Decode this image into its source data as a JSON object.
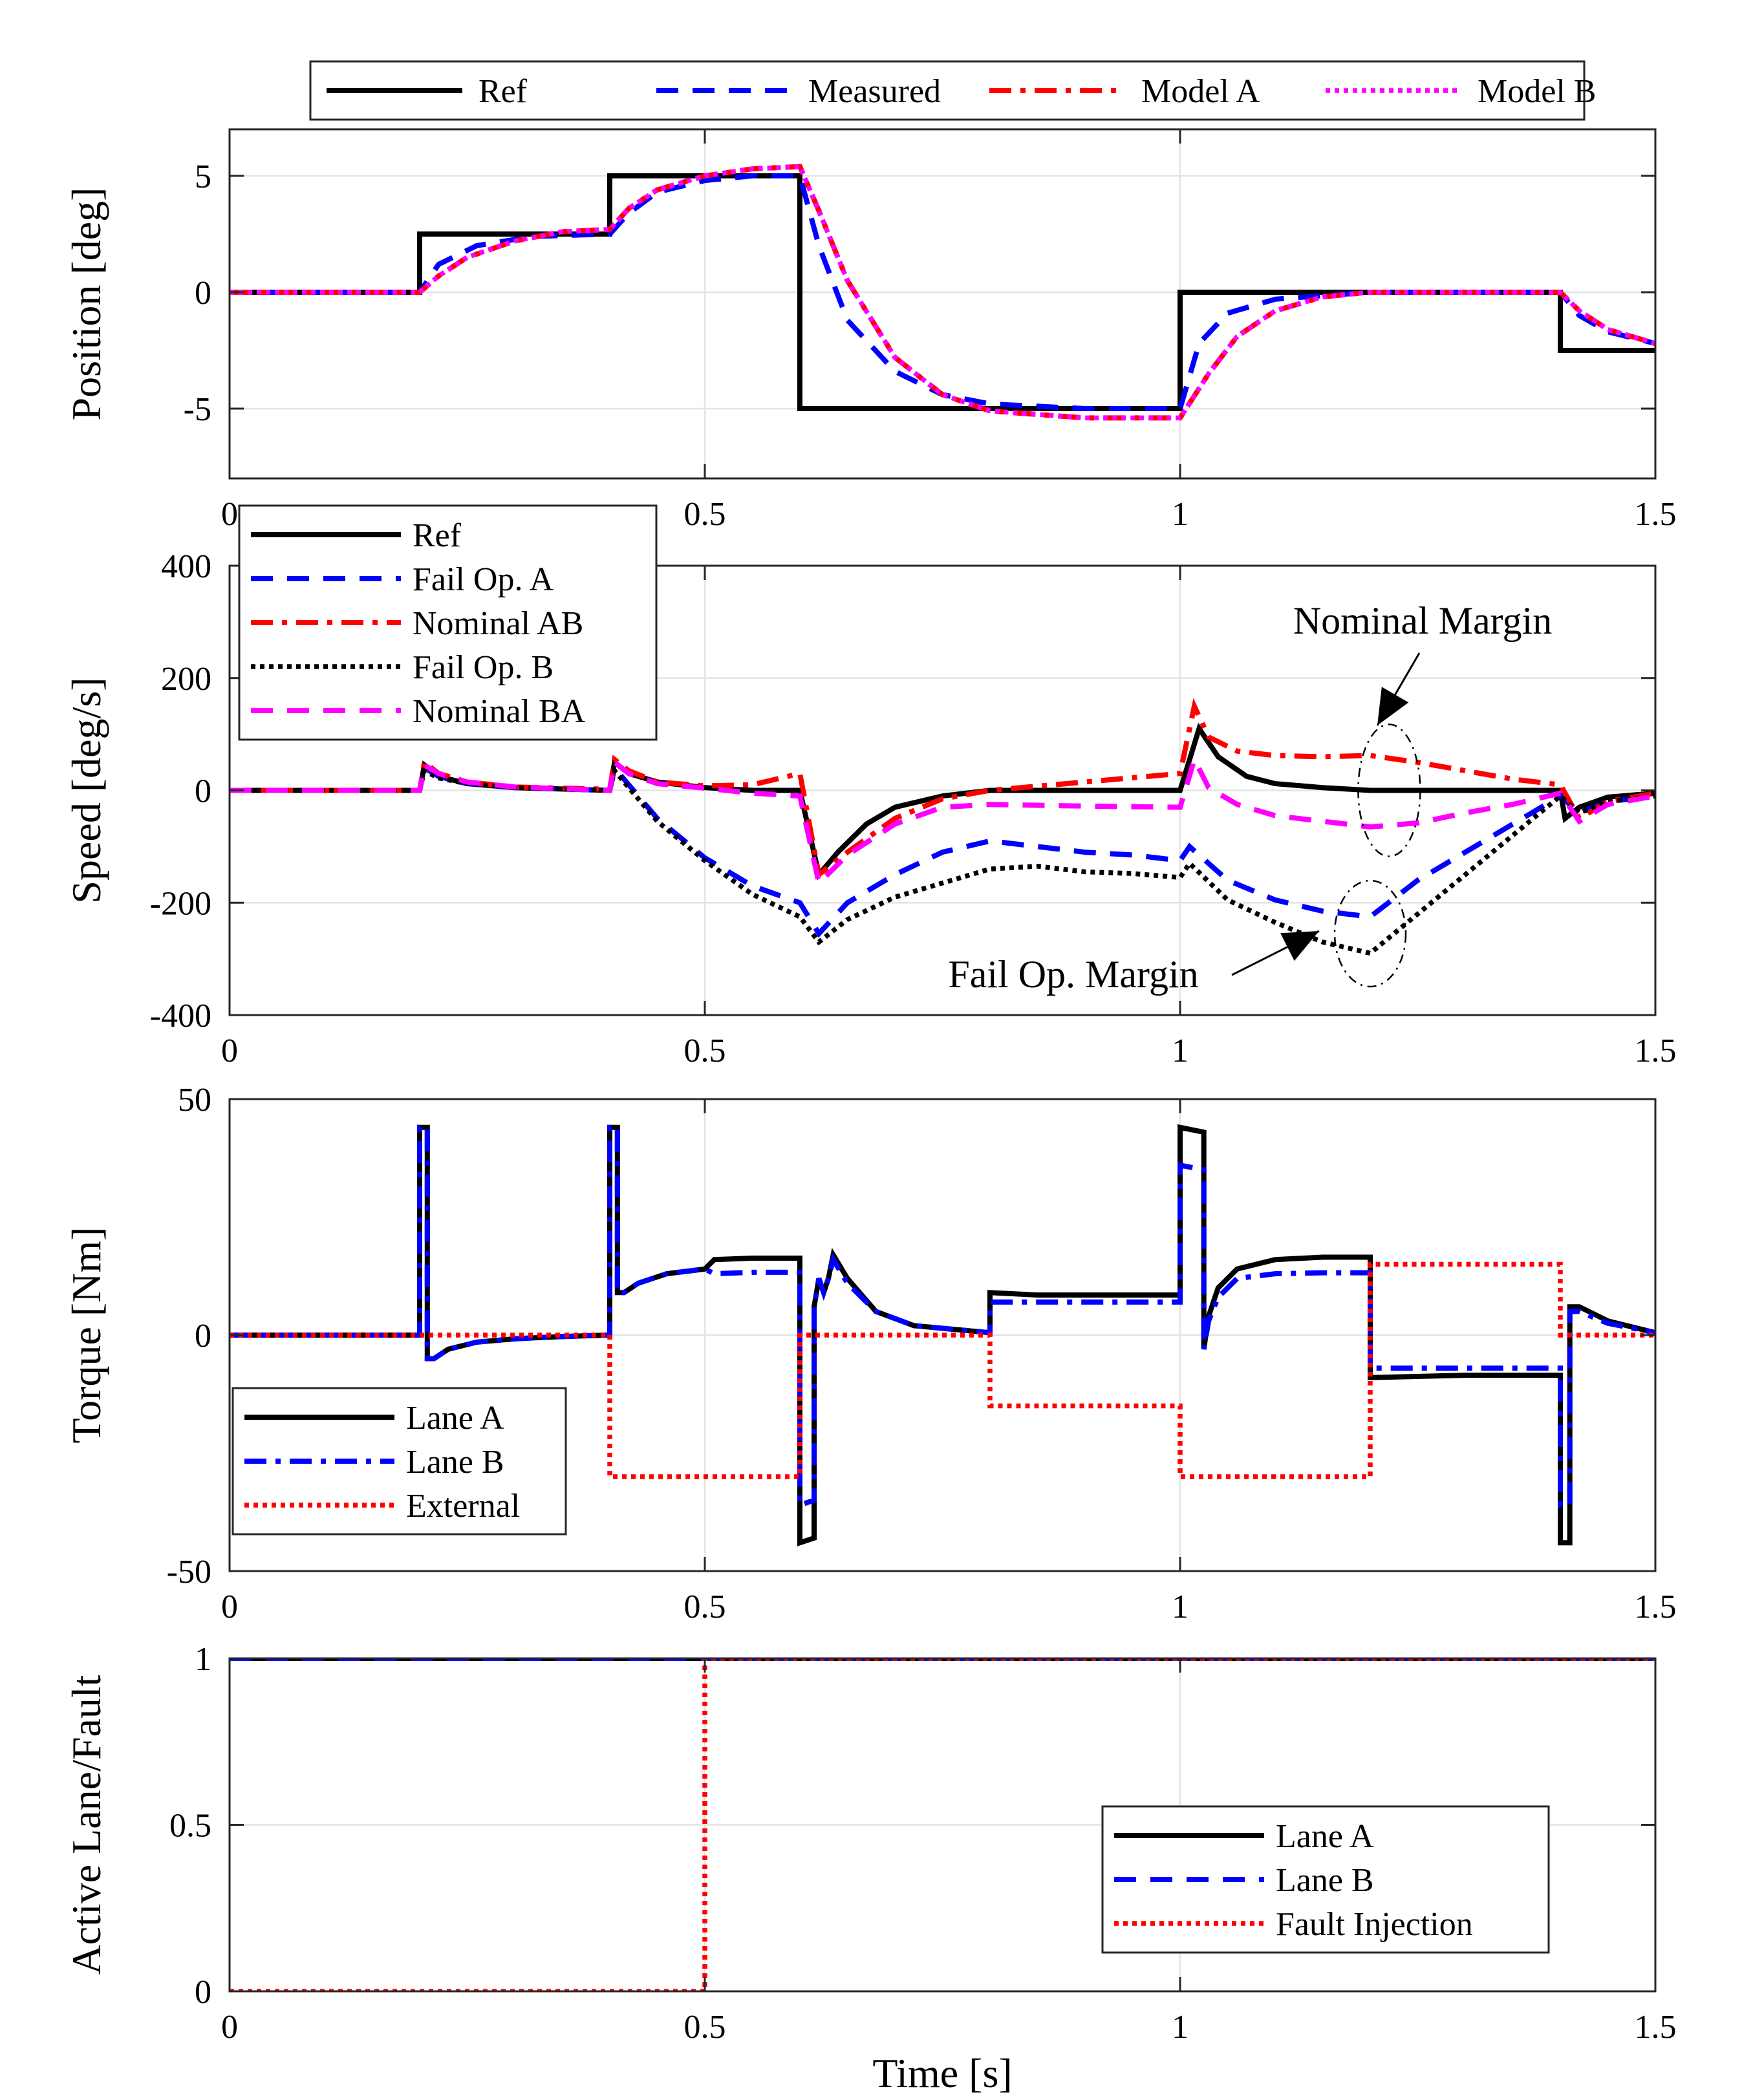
{
  "chart_data": [
    {
      "type": "line",
      "id": "position",
      "ylabel": "Position [deg]",
      "xlabel": "",
      "xlim": [
        0,
        1.5
      ],
      "ylim": [
        -8,
        7
      ],
      "xticks": [
        0,
        0.5,
        1,
        1.5
      ],
      "xtick_labels": [
        "0",
        "0.5",
        "1",
        "1.5"
      ],
      "yticks": [
        -5,
        0,
        5
      ],
      "ytick_labels": [
        "-5",
        "0",
        "5"
      ],
      "grid": true,
      "legend": {
        "placement": "top, horizontal, outside",
        "entries": [
          "Ref",
          "Measured",
          "Model A",
          "Model B"
        ]
      },
      "series": [
        {
          "name": "Ref",
          "color": "#000000",
          "style": "solid",
          "x": [
            0,
            0.2,
            0.2,
            0.4,
            0.4,
            0.6,
            0.6,
            1.0,
            1.0,
            1.4,
            1.4,
            1.5
          ],
          "y": [
            0,
            0,
            2.5,
            2.5,
            5,
            5,
            -5,
            -5,
            0,
            0,
            -2.5,
            -2.5
          ]
        },
        {
          "name": "Measured",
          "color": "#0000ff",
          "style": "dashed",
          "x": [
            0,
            0.2,
            0.22,
            0.26,
            0.32,
            0.4,
            0.42,
            0.45,
            0.5,
            0.55,
            0.6,
            0.62,
            0.65,
            0.7,
            0.75,
            0.8,
            0.9,
            1.0,
            1.02,
            1.05,
            1.1,
            1.2,
            1.3,
            1.4,
            1.42,
            1.45,
            1.5
          ],
          "y": [
            0,
            0,
            1.2,
            2.0,
            2.4,
            2.5,
            3.4,
            4.3,
            4.8,
            5.0,
            5.0,
            2.0,
            -1.2,
            -3.4,
            -4.4,
            -4.8,
            -5.0,
            -5.0,
            -2.2,
            -0.9,
            -0.3,
            0,
            0,
            0,
            -1.0,
            -1.7,
            -2.2
          ]
        },
        {
          "name": "Model A",
          "color": "#ff0000",
          "style": "dashdot",
          "x": [
            0,
            0.2,
            0.22,
            0.25,
            0.3,
            0.35,
            0.4,
            0.42,
            0.45,
            0.5,
            0.55,
            0.6,
            0.62,
            0.65,
            0.7,
            0.75,
            0.8,
            0.9,
            1.0,
            1.03,
            1.06,
            1.1,
            1.15,
            1.2,
            1.3,
            1.4,
            1.42,
            1.45,
            1.5
          ],
          "y": [
            0,
            0,
            0.7,
            1.5,
            2.2,
            2.6,
            2.7,
            3.6,
            4.4,
            5.0,
            5.3,
            5.4,
            3.5,
            0.5,
            -2.8,
            -4.4,
            -5.1,
            -5.4,
            -5.4,
            -3.5,
            -1.9,
            -0.8,
            -0.2,
            0,
            0,
            0,
            -0.8,
            -1.6,
            -2.2
          ]
        },
        {
          "name": "Model B",
          "color": "#ff00ff",
          "style": "dotted",
          "x": [
            0,
            0.2,
            0.22,
            0.25,
            0.3,
            0.35,
            0.4,
            0.42,
            0.45,
            0.5,
            0.55,
            0.6,
            0.62,
            0.65,
            0.7,
            0.75,
            0.8,
            0.9,
            1.0,
            1.03,
            1.06,
            1.1,
            1.15,
            1.2,
            1.3,
            1.4,
            1.42,
            1.45,
            1.5
          ],
          "y": [
            0,
            0,
            0.7,
            1.5,
            2.2,
            2.6,
            2.7,
            3.6,
            4.4,
            5.0,
            5.3,
            5.4,
            3.5,
            0.5,
            -2.8,
            -4.4,
            -5.1,
            -5.4,
            -5.4,
            -3.5,
            -1.9,
            -0.8,
            -0.2,
            0,
            0,
            0,
            -0.8,
            -1.6,
            -2.2
          ]
        }
      ]
    },
    {
      "type": "line",
      "id": "speed",
      "ylabel": "Speed [deg/s]",
      "xlabel": "",
      "xlim": [
        0,
        1.5
      ],
      "ylim": [
        -400,
        400
      ],
      "xticks": [
        0,
        0.5,
        1,
        1.5
      ],
      "xtick_labels": [
        "0",
        "0.5",
        "1",
        "1.5"
      ],
      "yticks": [
        -400,
        -200,
        0,
        200,
        400
      ],
      "ytick_labels": [
        "-400",
        "-200",
        "0",
        "200",
        "400"
      ],
      "grid": true,
      "legend": {
        "placement": "top-left",
        "entries": [
          "Ref",
          "Fail Op. A",
          "Nominal AB",
          "Fail Op. B",
          "Nominal BA"
        ]
      },
      "annotations": [
        {
          "text": "Nominal Margin",
          "x": 1.22,
          "y": 300
        },
        {
          "text": "Fail Op. Margin",
          "x": 0.88,
          "y": -330
        }
      ],
      "series": [
        {
          "name": "Ref",
          "color": "#000000",
          "style": "solid",
          "x": [
            0,
            0.2,
            0.205,
            0.22,
            0.25,
            0.3,
            0.4,
            0.405,
            0.42,
            0.45,
            0.5,
            0.55,
            0.6,
            0.62,
            0.64,
            0.67,
            0.7,
            0.75,
            0.8,
            0.9,
            1.0,
            1.02,
            1.04,
            1.07,
            1.1,
            1.15,
            1.2,
            1.3,
            1.4,
            1.405,
            1.42,
            1.45,
            1.5
          ],
          "y": [
            0,
            0,
            45,
            25,
            12,
            5,
            0,
            50,
            30,
            15,
            5,
            0,
            0,
            -150,
            -110,
            -60,
            -30,
            -10,
            0,
            0,
            0,
            110,
            60,
            25,
            12,
            5,
            0,
            0,
            0,
            -50,
            -30,
            -12,
            -5
          ]
        },
        {
          "name": "Fail Op. A",
          "color": "#0000ff",
          "style": "dashed",
          "x": [
            0,
            0.2,
            0.205,
            0.22,
            0.25,
            0.3,
            0.4,
            0.405,
            0.42,
            0.45,
            0.5,
            0.55,
            0.6,
            0.62,
            0.65,
            0.7,
            0.75,
            0.8,
            0.85,
            0.9,
            0.95,
            1.0,
            1.01,
            1.05,
            1.1,
            1.15,
            1.2,
            1.25,
            1.3,
            1.35,
            1.4,
            1.42,
            1.45,
            1.5
          ],
          "y": [
            0,
            0,
            40,
            25,
            12,
            5,
            0,
            40,
            10,
            -50,
            -120,
            -170,
            -200,
            -255,
            -200,
            -150,
            -110,
            -90,
            -100,
            -110,
            -115,
            -125,
            -100,
            -160,
            -195,
            -215,
            -225,
            -160,
            -110,
            -60,
            -10,
            -40,
            -20,
            -10
          ]
        },
        {
          "name": "Nominal AB",
          "color": "#ff0000",
          "style": "dashdot",
          "x": [
            0,
            0.2,
            0.205,
            0.22,
            0.25,
            0.3,
            0.4,
            0.405,
            0.42,
            0.45,
            0.5,
            0.55,
            0.6,
            0.62,
            0.65,
            0.7,
            0.75,
            0.8,
            0.9,
            1.0,
            1.015,
            1.03,
            1.06,
            1.1,
            1.15,
            1.2,
            1.25,
            1.3,
            1.35,
            1.4,
            1.42,
            1.45,
            1.5
          ],
          "y": [
            0,
            0,
            50,
            30,
            15,
            6,
            2,
            55,
            35,
            15,
            8,
            10,
            30,
            -150,
            -110,
            -50,
            -15,
            0,
            15,
            30,
            150,
            95,
            70,
            62,
            60,
            62,
            50,
            35,
            20,
            10,
            -50,
            -20,
            -5
          ]
        },
        {
          "name": "Fail Op. B",
          "color": "#000000",
          "style": "dotted",
          "x": [
            0,
            0.2,
            0.205,
            0.22,
            0.25,
            0.3,
            0.4,
            0.405,
            0.42,
            0.45,
            0.5,
            0.55,
            0.6,
            0.62,
            0.65,
            0.7,
            0.75,
            0.8,
            0.85,
            0.9,
            0.95,
            1.0,
            1.01,
            1.05,
            1.1,
            1.15,
            1.2,
            1.25,
            1.3,
            1.35,
            1.4,
            1.42,
            1.45,
            1.5
          ],
          "y": [
            0,
            0,
            35,
            22,
            12,
            5,
            0,
            35,
            5,
            -55,
            -125,
            -185,
            -225,
            -270,
            -230,
            -190,
            -165,
            -140,
            -135,
            -145,
            -148,
            -155,
            -130,
            -195,
            -235,
            -270,
            -290,
            -220,
            -150,
            -80,
            -10,
            -40,
            -20,
            -10
          ]
        },
        {
          "name": "Nominal BA",
          "color": "#ff00ff",
          "style": "dashed",
          "x": [
            0,
            0.2,
            0.205,
            0.22,
            0.25,
            0.3,
            0.4,
            0.405,
            0.42,
            0.45,
            0.5,
            0.55,
            0.6,
            0.62,
            0.65,
            0.7,
            0.75,
            0.8,
            0.9,
            1.0,
            1.015,
            1.03,
            1.06,
            1.1,
            1.15,
            1.2,
            1.25,
            1.3,
            1.35,
            1.4,
            1.42,
            1.45,
            1.5
          ],
          "y": [
            0,
            0,
            45,
            30,
            15,
            6,
            0,
            50,
            30,
            12,
            4,
            -5,
            -10,
            -165,
            -115,
            -60,
            -30,
            -25,
            -28,
            -30,
            55,
            5,
            -25,
            -45,
            -55,
            -65,
            -58,
            -40,
            -25,
            -5,
            -55,
            -25,
            -10
          ]
        }
      ]
    },
    {
      "type": "line",
      "id": "torque",
      "ylabel": "Torque [Nm]",
      "xlabel": "",
      "xlim": [
        0,
        1.5
      ],
      "ylim": [
        -50,
        50
      ],
      "xticks": [
        0,
        0.5,
        1,
        1.5
      ],
      "xtick_labels": [
        "0",
        "0.5",
        "1",
        "1.5"
      ],
      "yticks": [
        -50,
        0,
        50
      ],
      "ytick_labels": [
        "-50",
        "0",
        "50"
      ],
      "grid": true,
      "legend": {
        "placement": "bottom-left",
        "entries": [
          "Lane A",
          "Lane B",
          "External"
        ]
      },
      "series": [
        {
          "name": "Lane A",
          "color": "#000000",
          "style": "solid",
          "x": [
            0,
            0.2,
            0.2,
            0.208,
            0.208,
            0.215,
            0.23,
            0.26,
            0.3,
            0.35,
            0.4,
            0.4,
            0.408,
            0.408,
            0.415,
            0.43,
            0.46,
            0.5,
            0.51,
            0.55,
            0.6,
            0.6,
            0.615,
            0.615,
            0.62,
            0.625,
            0.63,
            0.635,
            0.65,
            0.68,
            0.72,
            0.8,
            0.8,
            0.85,
            0.9,
            0.95,
            1.0,
            1.0,
            1.025,
            1.025,
            1.03,
            1.04,
            1.06,
            1.1,
            1.15,
            1.2,
            1.2,
            1.3,
            1.4,
            1.4,
            1.41,
            1.41,
            1.42,
            1.45,
            1.5
          ],
          "y": [
            0,
            0,
            44,
            44,
            -5,
            -5,
            -3,
            -1.5,
            -0.8,
            -0.3,
            0,
            44,
            44,
            9,
            9,
            11,
            13,
            14,
            16,
            16.3,
            16.3,
            -44,
            -43,
            6,
            12,
            9,
            12,
            17,
            12,
            5,
            2,
            0.5,
            9,
            8.5,
            8.5,
            8.5,
            8.5,
            44,
            43,
            -3,
            4,
            10,
            14,
            16,
            16.5,
            16.5,
            -9,
            -8.5,
            -8.5,
            -44,
            -44,
            6,
            6,
            3,
            0.5
          ]
        },
        {
          "name": "Lane B",
          "color": "#0000ff",
          "style": "dashdot",
          "x": [
            0,
            0.2,
            0.2,
            0.208,
            0.208,
            0.215,
            0.23,
            0.26,
            0.3,
            0.35,
            0.4,
            0.4,
            0.408,
            0.408,
            0.415,
            0.43,
            0.46,
            0.5,
            0.51,
            0.55,
            0.6,
            0.6,
            0.615,
            0.615,
            0.62,
            0.625,
            0.63,
            0.635,
            0.65,
            0.68,
            0.72,
            0.8,
            0.8,
            0.85,
            0.9,
            0.95,
            1.0,
            1.0,
            1.025,
            1.025,
            1.03,
            1.04,
            1.06,
            1.1,
            1.15,
            1.2,
            1.2,
            1.3,
            1.4,
            1.4,
            1.41,
            1.41,
            1.42,
            1.45,
            1.5
          ],
          "y": [
            0,
            0,
            44,
            44,
            -5,
            -5,
            -3,
            -1.5,
            -0.8,
            -0.3,
            0,
            44,
            44,
            9,
            9,
            11,
            13,
            14,
            13,
            13.3,
            13.3,
            -36,
            -35,
            6,
            12,
            9,
            12,
            16,
            11,
            5,
            2,
            0.5,
            7,
            7,
            7,
            7,
            7,
            36,
            35,
            -3,
            3,
            8,
            12,
            13,
            13.2,
            13.2,
            -7,
            -7,
            -7,
            -36,
            -36,
            5,
            5,
            2.5,
            0.5
          ]
        },
        {
          "name": "External",
          "color": "#ff0000",
          "style": "dotted",
          "x": [
            0,
            0.4,
            0.4,
            0.6,
            0.6,
            0.8,
            0.8,
            1.0,
            1.0,
            1.2,
            1.2,
            1.4,
            1.4,
            1.5
          ],
          "y": [
            0,
            0,
            -30,
            -30,
            0,
            0,
            -15,
            -15,
            -30,
            -30,
            15,
            15,
            0,
            0
          ]
        }
      ]
    },
    {
      "type": "line",
      "id": "active-lane",
      "ylabel": "Active Lane/Fault",
      "xlabel": "Time [s]",
      "xlim": [
        0,
        1.5
      ],
      "ylim": [
        0,
        1
      ],
      "xticks": [
        0,
        0.5,
        1,
        1.5
      ],
      "xtick_labels": [
        "0",
        "0.5",
        "1",
        "1.5"
      ],
      "yticks": [
        0,
        0.5,
        1
      ],
      "ytick_labels": [
        "0",
        "0.5",
        "1"
      ],
      "grid": true,
      "legend": {
        "placement": "bottom-right",
        "entries": [
          "Lane A",
          "Lane B",
          "Fault Injection"
        ]
      },
      "series": [
        {
          "name": "Lane A",
          "color": "#000000",
          "style": "solid",
          "x": [
            0,
            1.5
          ],
          "y": [
            1,
            1
          ]
        },
        {
          "name": "Lane B",
          "color": "#0000ff",
          "style": "dashed",
          "x": [
            0,
            1.5
          ],
          "y": [
            1,
            1
          ]
        },
        {
          "name": "Fault Injection",
          "color": "#ff0000",
          "style": "dotted",
          "x": [
            0,
            0.5,
            0.5,
            1.5
          ],
          "y": [
            0,
            0,
            1,
            1
          ]
        }
      ]
    }
  ]
}
